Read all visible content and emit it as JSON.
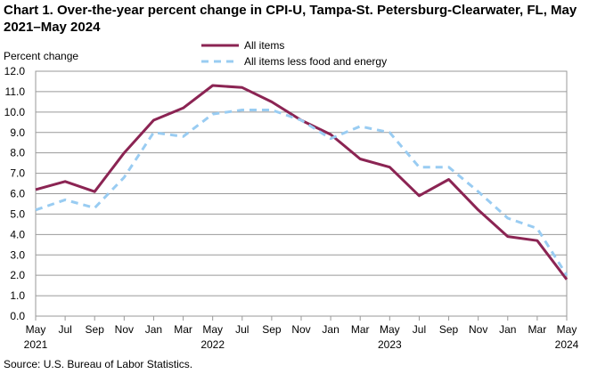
{
  "title": "Chart 1. Over-the-year percent change in CPI-U, Tampa-St. Petersburg-Clearwater, FL, May 2021–May 2024",
  "source": "Source: U.S. Bureau of Labor Statistics.",
  "colors": {
    "all_items": "#8b2453",
    "core": "#99ccf2",
    "grid": "#999999"
  },
  "chart_data": {
    "type": "line",
    "ylabel": "Percent change",
    "ylim": [
      0,
      12
    ],
    "yticks": [
      "0.0",
      "1.0",
      "2.0",
      "3.0",
      "4.0",
      "5.0",
      "6.0",
      "7.0",
      "8.0",
      "9.0",
      "10.0",
      "11.0",
      "12.0"
    ],
    "x_tick_labels": [
      "May",
      "Jul",
      "Sep",
      "Nov",
      "Jan",
      "Mar",
      "May",
      "Jul",
      "Sep",
      "Nov",
      "Jan",
      "Mar",
      "May",
      "Jul",
      "Sep",
      "Nov",
      "Jan",
      "Mar",
      "May"
    ],
    "x_year_labels": [
      {
        "index": 0,
        "label": "2021"
      },
      {
        "index": 6,
        "label": "2022"
      },
      {
        "index": 12,
        "label": "2023"
      },
      {
        "index": 18,
        "label": "2024"
      }
    ],
    "series": [
      {
        "name": "All items",
        "style": "solid",
        "values": [
          6.2,
          6.6,
          6.1,
          8.0,
          9.6,
          10.2,
          11.3,
          11.2,
          10.5,
          9.6,
          8.9,
          7.7,
          7.3,
          5.9,
          6.7,
          5.2,
          3.9,
          3.7,
          1.8
        ]
      },
      {
        "name": "All items less food and energy",
        "style": "dashed",
        "values": [
          5.2,
          5.7,
          5.3,
          6.8,
          9.0,
          8.8,
          9.9,
          10.1,
          10.1,
          9.6,
          8.7,
          9.3,
          9.0,
          7.3,
          7.3,
          6.1,
          4.8,
          4.3,
          2.0
        ]
      }
    ],
    "legend_position": "top-center"
  }
}
